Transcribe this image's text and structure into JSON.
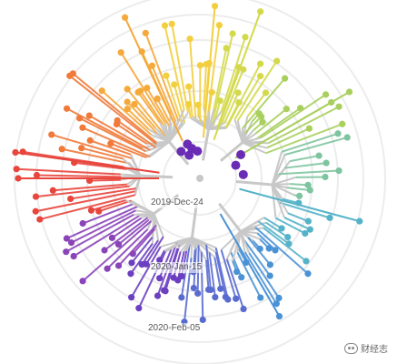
{
  "title": "",
  "time_axis_labels": [
    "2019-Dec-24",
    "2020-Jan-15",
    "2020-Feb-05"
  ],
  "watermark": {
    "text": "财经志",
    "icon": "wechat-icon"
  },
  "colors": {
    "branch": "#c8c8c8",
    "ring": "#ececec",
    "root_cluster": "#6a2bb5",
    "palette": [
      "#e8453c",
      "#f07a3a",
      "#f5a93a",
      "#f2cf3e",
      "#d4d94b",
      "#a9cf5e",
      "#7ec4a0",
      "#55b3c9",
      "#4a92d6",
      "#5a6bd0",
      "#6b3fc0",
      "#8a44b8"
    ]
  },
  "chart_data": {
    "type": "radial_phylogenetic_tree",
    "time_rings": [
      "2019-Dec-24",
      "2020-Jan-15",
      "2020-Feb-05"
    ],
    "grid": true,
    "leaf_count": 160,
    "coloring": "leaf color varies with angle around the tree"
  }
}
